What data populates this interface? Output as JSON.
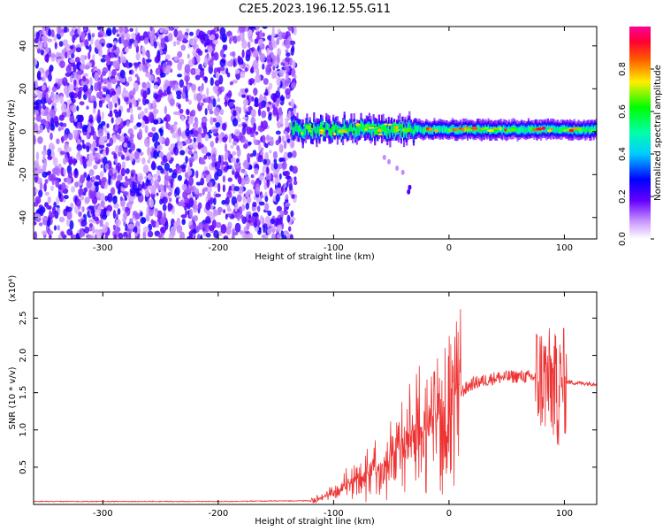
{
  "title": "C2E5.2023.196.12.55.G11",
  "colors": {
    "trace": "#ee3333",
    "axis": "#000000"
  },
  "chart_data": [
    {
      "type": "heatmap",
      "xlabel": "Height of straight line (km)",
      "ylabel": "Frequency (Hz)",
      "xlim": [
        -360,
        128
      ],
      "ylim": [
        -50,
        49
      ],
      "xticks": [
        -300,
        -200,
        -100,
        0,
        100
      ],
      "yticks": [
        -40,
        -20,
        0,
        20,
        40
      ],
      "colorbar": {
        "label": "Normalized spectral amplitude",
        "range": [
          0,
          1
        ],
        "ticks": [
          "0.0",
          "0.2",
          "0.4",
          "0.6",
          "0.8"
        ],
        "colormap": "white-purple-blue-cyan-green-yellow-red-magenta"
      },
      "regions": [
        {
          "from": -360,
          "to": -137,
          "description_value": 0.3
        },
        {
          "from": -137,
          "to": 128,
          "center_freq": 1,
          "half_width": 4,
          "peak_value": 0.9
        }
      ]
    },
    {
      "type": "line",
      "xlabel": "Height of straight line (km)",
      "ylabel": "SNR (10 * v/v)",
      "scale_label": "(x10⁴)",
      "xlim": [
        -360,
        128
      ],
      "ylim": [
        0,
        2.85
      ],
      "xticks": [
        -300,
        -200,
        -100,
        0,
        100
      ],
      "yticks": [
        "0.5",
        "1.0",
        "1.5",
        "2.0",
        "2.5"
      ],
      "ytick_values": [
        0.5,
        1.0,
        1.5,
        2.0,
        2.5
      ],
      "series_envelope": {
        "x": [
          -360,
          -200,
          -120,
          -100,
          -80,
          -60,
          -40,
          -20,
          0,
          10,
          20,
          40,
          60,
          80,
          90,
          95,
          100,
          110,
          128
        ],
        "y": [
          0.04,
          0.04,
          0.05,
          0.15,
          0.35,
          0.55,
          0.8,
          1.05,
          1.3,
          1.5,
          1.62,
          1.7,
          1.72,
          1.7,
          1.6,
          1.5,
          1.65,
          1.63,
          1.62
        ]
      }
    }
  ]
}
